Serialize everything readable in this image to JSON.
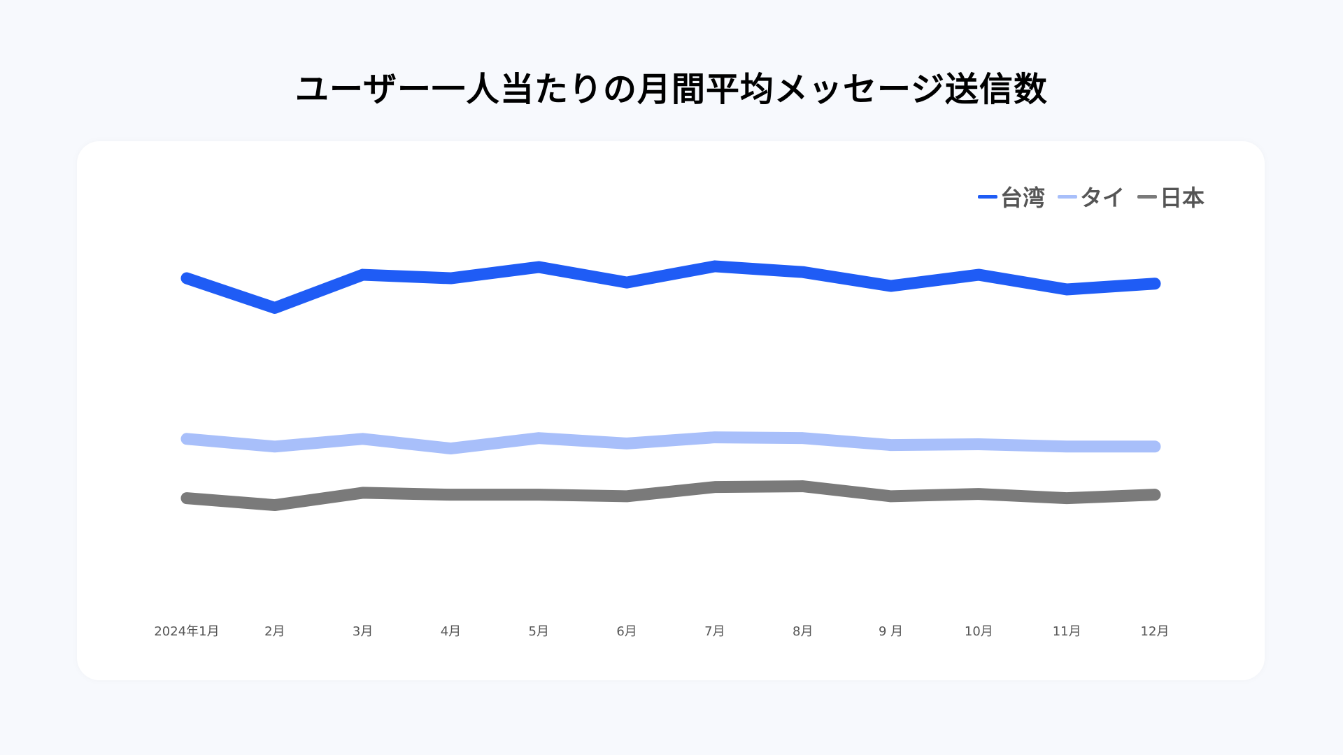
{
  "title": "ユーザー一人当たりの月間平均メッセージ送信数",
  "chart_data": {
    "type": "line",
    "title": "ユーザー一人当たりの月間平均メッセージ送信数",
    "xlabel": "",
    "ylabel": "",
    "categories": [
      "2024年1月",
      "2月",
      "3月",
      "4月",
      "5月",
      "6月",
      "7月",
      "8月",
      "9 月",
      "10月",
      "11月",
      "12月"
    ],
    "ylim": [
      0,
      100
    ],
    "grid": false,
    "legend": "top-right",
    "series": [
      {
        "name": "台湾",
        "color": "#1f5cf5",
        "values": [
          83.3,
          75.6,
          84.2,
          83.3,
          86.2,
          82.2,
          86.4,
          84.9,
          81.3,
          84.2,
          80.4,
          81.9
        ]
      },
      {
        "name": "タイ",
        "color": "#a8bffa",
        "values": [
          41.6,
          39.6,
          41.6,
          39.1,
          41.8,
          40.4,
          42.0,
          41.8,
          40.0,
          40.2,
          39.6,
          39.6
        ]
      },
      {
        "name": "日本",
        "color": "#7a7a7a",
        "values": [
          26.2,
          24.4,
          27.6,
          27.1,
          27.1,
          26.7,
          29.1,
          29.3,
          26.7,
          27.3,
          26.2,
          27.1
        ]
      }
    ]
  }
}
